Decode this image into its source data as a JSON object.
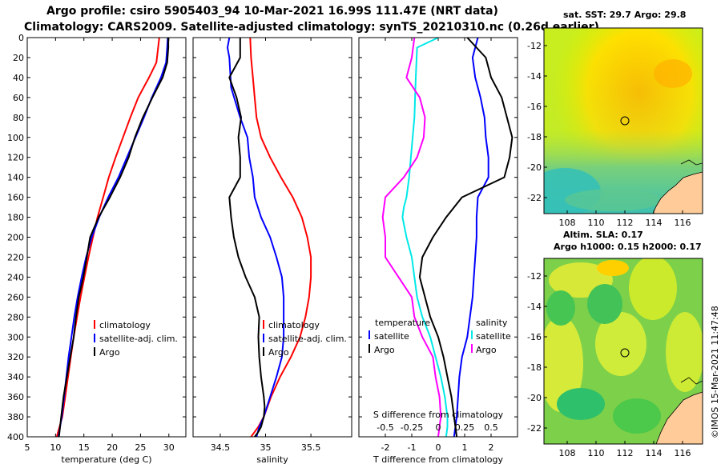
{
  "header": {
    "line1": "Argo profile: csiro 5905403_94 10-Mar-2021 16.99S 111.47E (NRT data)",
    "line2": "Climatology: CARS2009. Satellite-adjusted climatology: synTS_20210310.nc (0.26d earlier)"
  },
  "colors": {
    "climatology": "#ff0000",
    "satellite": "#0000ff",
    "argo": "#000000",
    "salinity_diff": "#ff00ff",
    "temp_diff": "#00e8e8"
  },
  "chart_data": [
    {
      "type": "line",
      "id": "temperature",
      "xlabel": "temperature (deg C)",
      "xlim": [
        5,
        33
      ],
      "ylim": [
        400,
        0
      ],
      "xticks": [
        5,
        10,
        15,
        20,
        25,
        30
      ],
      "yticks": [
        0,
        20,
        40,
        60,
        80,
        100,
        120,
        140,
        160,
        180,
        200,
        220,
        240,
        260,
        280,
        300,
        320,
        340,
        360,
        380,
        400
      ],
      "legend": [
        "climatology",
        "satellite-adj. clim.",
        "Argo"
      ],
      "series": [
        {
          "name": "climatology",
          "color": "#ff0000",
          "x": [
            28.3,
            28.1,
            27.8,
            26.5,
            24.6,
            23.2,
            21.9,
            20.6,
            19.4,
            18.4,
            17.4,
            16.6,
            15.8,
            15.1,
            14.4,
            13.8,
            13.2,
            12.7,
            12.2,
            11.7,
            11.2,
            10.7,
            10.2
          ],
          "y": [
            0,
            10,
            25,
            40,
            60,
            80,
            100,
            120,
            140,
            160,
            180,
            200,
            220,
            240,
            260,
            280,
            300,
            320,
            340,
            360,
            380,
            390,
            400
          ]
        },
        {
          "name": "satellite-adj. clim.",
          "color": "#0000ff",
          "x": [
            29.8,
            29.7,
            29.5,
            28.6,
            27.0,
            25.6,
            24.1,
            22.6,
            21.1,
            19.3,
            17.7,
            16.4,
            15.4,
            14.6,
            13.9,
            13.3,
            12.8,
            12.3,
            11.9,
            11.5,
            11.1,
            10.8,
            10.5
          ],
          "y": [
            0,
            10,
            25,
            40,
            60,
            80,
            100,
            120,
            140,
            160,
            180,
            200,
            220,
            240,
            260,
            280,
            300,
            320,
            340,
            360,
            380,
            390,
            400
          ]
        },
        {
          "name": "Argo",
          "color": "#000000",
          "x": [
            29.9,
            29.9,
            29.7,
            28.9,
            27.1,
            25.4,
            24.0,
            22.9,
            21.4,
            19.6,
            17.6,
            16.1,
            15.5,
            14.9,
            14.1,
            13.6,
            13.2,
            12.6,
            12.0,
            11.4,
            11.0,
            10.6
          ],
          "y": [
            0,
            10,
            25,
            40,
            60,
            80,
            100,
            120,
            140,
            160,
            180,
            200,
            220,
            240,
            260,
            280,
            300,
            320,
            340,
            360,
            380,
            400
          ]
        }
      ]
    },
    {
      "type": "line",
      "id": "salinity",
      "xlabel": "salinity",
      "xlim": [
        34.2,
        35.95
      ],
      "ylim": [
        400,
        0
      ],
      "xticks": [
        34.5,
        35,
        35.5
      ],
      "tick_labels": [
        "34.5",
        "35",
        "35.5"
      ],
      "legend": [
        "climatology",
        "satellite-adj. clim.",
        "Argo"
      ],
      "series": [
        {
          "name": "climatology",
          "color": "#ff0000",
          "x": [
            34.83,
            34.84,
            34.86,
            34.88,
            34.9,
            34.95,
            35.05,
            35.17,
            35.3,
            35.4,
            35.46,
            35.5,
            35.5,
            35.48,
            35.44,
            35.38,
            35.28,
            35.16,
            35.06,
            34.98,
            34.92,
            34.88,
            34.84
          ],
          "y": [
            0,
            20,
            40,
            60,
            80,
            100,
            120,
            140,
            160,
            180,
            200,
            220,
            240,
            260,
            280,
            300,
            320,
            340,
            360,
            380,
            390,
            395,
            400
          ]
        },
        {
          "name": "satellite-adj. clim.",
          "color": "#0000ff",
          "x": [
            34.6,
            34.58,
            34.6,
            34.62,
            34.72,
            34.8,
            34.82,
            34.86,
            34.88,
            34.95,
            35.05,
            35.12,
            35.18,
            35.2,
            35.2,
            35.2,
            35.18,
            35.12,
            35.05,
            34.98,
            34.93,
            34.9
          ],
          "y": [
            0,
            10,
            20,
            50,
            80,
            100,
            120,
            140,
            160,
            180,
            200,
            220,
            240,
            260,
            280,
            300,
            320,
            340,
            360,
            380,
            390,
            400
          ]
        },
        {
          "name": "Argo",
          "color": "#000000",
          "x": [
            34.72,
            34.72,
            34.6,
            34.68,
            34.73,
            34.7,
            34.72,
            34.72,
            34.6,
            34.62,
            34.65,
            34.7,
            34.78,
            34.88,
            34.93,
            34.92,
            34.93,
            34.95,
            34.98,
            34.99,
            34.98,
            34.95,
            34.92,
            34.88
          ],
          "y": [
            0,
            20,
            40,
            60,
            80,
            100,
            120,
            140,
            160,
            180,
            200,
            220,
            240,
            260,
            280,
            300,
            320,
            340,
            360,
            370,
            380,
            390,
            395,
            400
          ]
        }
      ]
    },
    {
      "type": "line",
      "id": "difference",
      "xlabel": "T difference from climatology",
      "top_label": "S difference from climatology",
      "xlim": [
        -3,
        3
      ],
      "ylim": [
        400,
        0
      ],
      "xticks": [
        -2,
        -1,
        0,
        1,
        2
      ],
      "top_ticks": [
        "-0.5",
        "-0.25",
        "0",
        "0.25",
        "0.5"
      ],
      "legend_left": [
        "temperature",
        "satellite",
        "Argo"
      ],
      "legend_right": [
        "salinity",
        "satellite",
        "Argo"
      ],
      "series": [
        {
          "name": "T diff satellite",
          "color": "#00e8e8",
          "x": [
            0,
            -0.8,
            -0.85,
            -0.9,
            -1.0,
            -1.1,
            -1.2,
            -1.3,
            -1.35,
            -1.2,
            -1.0,
            -0.9,
            -0.8,
            -0.6,
            -0.3,
            -0.1,
            0.1,
            0.25,
            0.3,
            0.35,
            0.35,
            0.3
          ],
          "y": [
            0,
            10,
            40,
            80,
            110,
            140,
            160,
            170,
            180,
            200,
            220,
            240,
            260,
            280,
            300,
            320,
            340,
            360,
            370,
            380,
            390,
            400
          ]
        },
        {
          "name": "T diff Argo",
          "color": "#ff00ff",
          "x": [
            -0.9,
            -1.0,
            -1.2,
            -0.7,
            -0.5,
            -0.55,
            -0.8,
            -1.3,
            -2.0,
            -2.1,
            -2.0,
            -2.0,
            -1.5,
            -1.0,
            -0.9,
            -0.6,
            -0.2,
            -0.1,
            0.05,
            0.1,
            0.05,
            0.0
          ],
          "y": [
            0,
            20,
            40,
            60,
            80,
            100,
            120,
            140,
            160,
            180,
            200,
            220,
            240,
            260,
            280,
            300,
            320,
            340,
            360,
            380,
            390,
            400
          ]
        },
        {
          "name": "S diff satellite",
          "color": "#0000ff",
          "x": [
            1.5,
            1.3,
            1.4,
            1.6,
            1.75,
            1.8,
            1.9,
            1.9,
            1.5,
            1.45,
            1.45,
            1.4,
            1.35,
            1.3,
            1.2,
            1.1,
            0.9,
            0.8,
            0.75,
            0.7,
            0.6
          ],
          "y": [
            0,
            20,
            40,
            60,
            80,
            100,
            120,
            140,
            160,
            180,
            200,
            220,
            240,
            260,
            280,
            300,
            320,
            340,
            360,
            380,
            400
          ]
        },
        {
          "name": "S diff Argo",
          "color": "#000000",
          "x": [
            1.1,
            1.8,
            2.0,
            2.4,
            2.6,
            2.8,
            2.7,
            2.5,
            0.9,
            0.3,
            -0.2,
            -0.6,
            -0.7,
            -0.5,
            -0.3,
            0.0,
            0.2,
            0.35,
            0.5,
            0.6,
            0.7
          ],
          "y": [
            0,
            20,
            40,
            60,
            80,
            100,
            120,
            140,
            160,
            180,
            200,
            220,
            240,
            260,
            280,
            300,
            320,
            340,
            360,
            380,
            400
          ]
        }
      ]
    }
  ],
  "maps": {
    "sst_label": "sat. SST: 29.7 Argo: 29.8",
    "sla_label": "Altim. SLA: 0.17",
    "h_label": "Argo h1000: 0.15 h2000: 0.17",
    "lon_ticks": [
      "108",
      "110",
      "112",
      "114",
      "116"
    ],
    "lat_ticks": [
      "-12",
      "-14",
      "-16",
      "-18",
      "-20",
      "-22"
    ],
    "float_lon": 111.47,
    "float_lat": -16.99
  },
  "footer": {
    "imos": "©IMOS 15-Mar-2021 11:47:48"
  }
}
